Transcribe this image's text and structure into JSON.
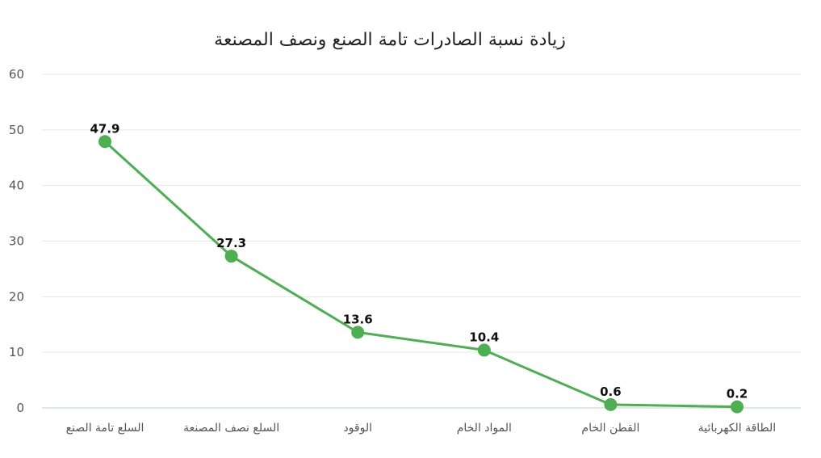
{
  "chart_data": {
    "type": "line",
    "title": "زيادة نسبة الصادرات تامة الصنع ونصف المصنعة",
    "xlabel": "",
    "ylabel": "",
    "categories": [
      "السلع تامة الصنع",
      "السلع نصف المصنعة",
      "الوقود",
      "المواد الخام",
      "القطن الخام",
      "الطاقة الكهربائية"
    ],
    "values": [
      47.9,
      27.3,
      13.6,
      10.4,
      0.6,
      0.2
    ],
    "value_labels": [
      "47.9",
      "27.3",
      "13.6",
      "10.4",
      "0.6",
      "0.2"
    ],
    "ylim": [
      0,
      60
    ],
    "yticks": [
      "0",
      "10",
      "20",
      "30",
      "40",
      "50",
      "60"
    ],
    "grid": true,
    "legend": "none",
    "color": "#4caf50"
  }
}
